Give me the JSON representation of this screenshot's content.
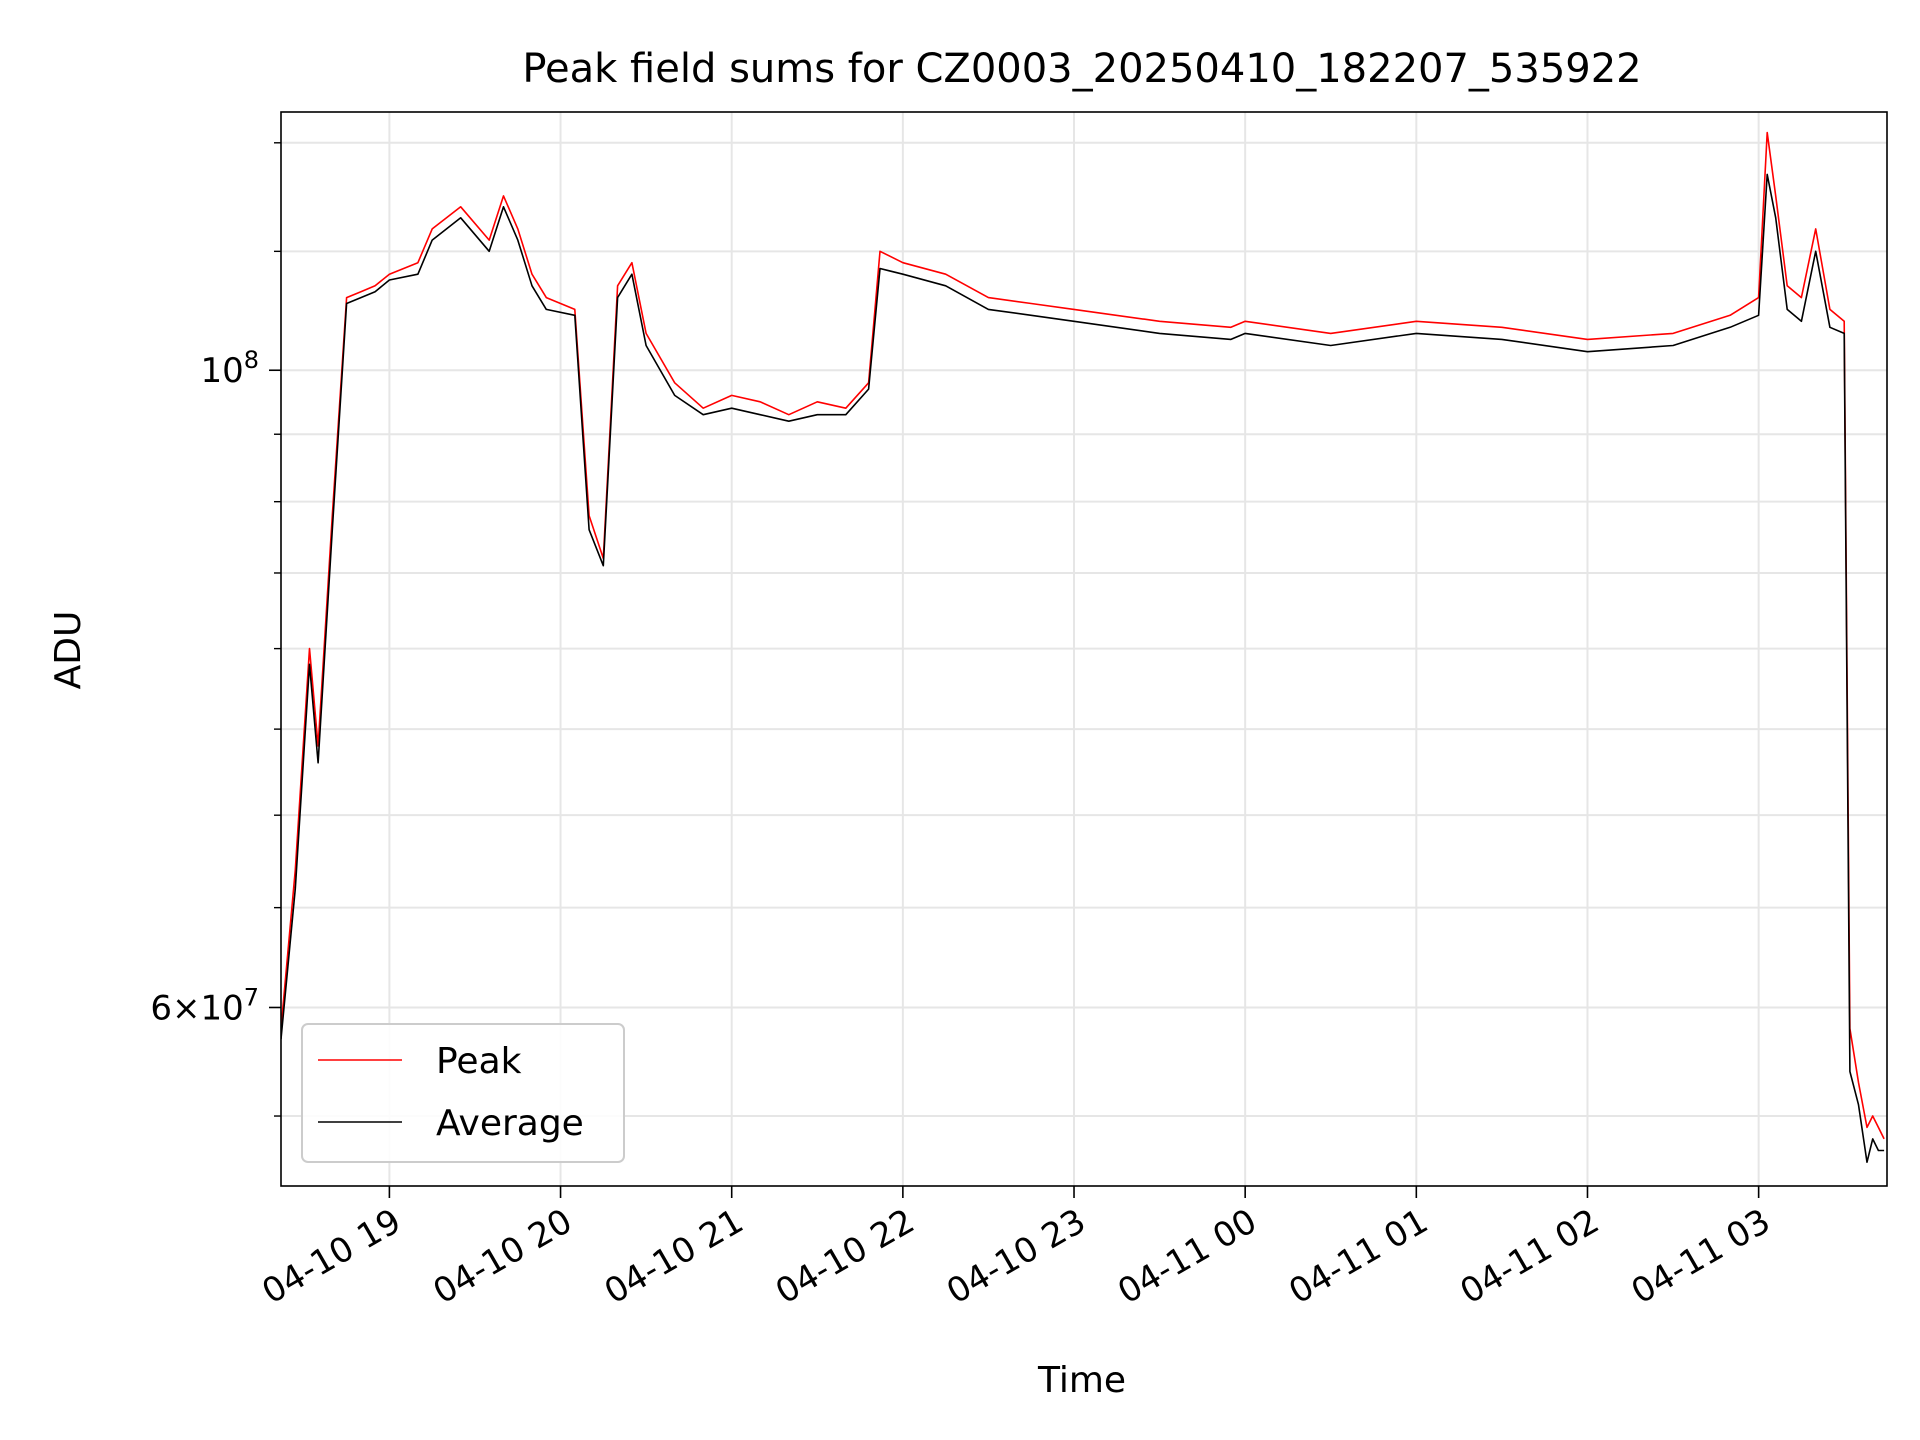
{
  "chart_data": {
    "type": "line",
    "title": "Peak field sums for CZ0003_20250410_182207_535922",
    "xlabel": "Time",
    "ylabel": "ADU",
    "yscale": "log",
    "grid": true,
    "legend_position": "lower-left",
    "xlim": [
      "2025-04-10 18:22",
      "2025-04-11 03:45"
    ],
    "ylim": [
      52000000,
      123000000
    ],
    "x_tick_labels": [
      "04-10 19",
      "04-10 20",
      "04-10 21",
      "04-10 22",
      "04-10 23",
      "04-11 00",
      "04-11 01",
      "04-11 02",
      "04-11 03"
    ],
    "x_ticks": [
      "2025-04-10 19:00",
      "2025-04-10 20:00",
      "2025-04-10 21:00",
      "2025-04-10 22:00",
      "2025-04-10 23:00",
      "2025-04-11 00:00",
      "2025-04-11 01:00",
      "2025-04-11 02:00",
      "2025-04-11 03:00"
    ],
    "y_major_ticks": [
      {
        "value": 100000000,
        "base": "10",
        "exp": "8",
        "mant": ""
      },
      {
        "value": 60000000,
        "base": "10",
        "exp": "7",
        "mant": "6"
      }
    ],
    "y_minor_ticks": [
      55000000,
      65000000,
      70000000,
      75000000,
      80000000,
      85000000,
      90000000,
      95000000,
      110000000,
      120000000
    ],
    "series": [
      {
        "name": "Peak",
        "color": "#ff0000",
        "x": [
          "2025-04-10 18:22",
          "2025-04-10 18:27",
          "2025-04-10 18:32",
          "2025-04-10 18:35",
          "2025-04-10 18:40",
          "2025-04-10 18:45",
          "2025-04-10 18:50",
          "2025-04-10 18:55",
          "2025-04-10 19:00",
          "2025-04-10 19:10",
          "2025-04-10 19:15",
          "2025-04-10 19:25",
          "2025-04-10 19:35",
          "2025-04-10 19:40",
          "2025-04-10 19:45",
          "2025-04-10 19:50",
          "2025-04-10 19:55",
          "2025-04-10 20:05",
          "2025-04-10 20:10",
          "2025-04-10 20:15",
          "2025-04-10 20:20",
          "2025-04-10 20:25",
          "2025-04-10 20:30",
          "2025-04-10 20:40",
          "2025-04-10 20:50",
          "2025-04-10 21:00",
          "2025-04-10 21:10",
          "2025-04-10 21:20",
          "2025-04-10 21:30",
          "2025-04-10 21:40",
          "2025-04-10 21:48",
          "2025-04-10 21:52",
          "2025-04-10 22:00",
          "2025-04-10 22:15",
          "2025-04-10 22:30",
          "2025-04-10 22:45",
          "2025-04-10 23:00",
          "2025-04-10 23:30",
          "2025-04-10 23:55",
          "2025-04-11 00:00",
          "2025-04-11 00:30",
          "2025-04-11 01:00",
          "2025-04-11 01:30",
          "2025-04-11 02:00",
          "2025-04-11 02:30",
          "2025-04-11 02:50",
          "2025-04-11 03:00",
          "2025-04-11 03:03",
          "2025-04-11 03:06",
          "2025-04-11 03:10",
          "2025-04-11 03:15",
          "2025-04-11 03:20",
          "2025-04-11 03:25",
          "2025-04-11 03:30",
          "2025-04-11 03:32",
          "2025-04-11 03:35",
          "2025-04-11 03:38",
          "2025-04-11 03:40",
          "2025-04-11 03:42",
          "2025-04-11 03:44"
        ],
        "values": [
          59000000,
          67000000,
          80000000,
          74000000,
          89000000,
          106000000,
          106500000,
          107000000,
          108000000,
          109000000,
          112000000,
          114000000,
          111000000,
          115000000,
          112000000,
          108000000,
          106000000,
          105000000,
          89000000,
          86000000,
          107000000,
          109000000,
          103000000,
          99000000,
          97000000,
          98000000,
          97500000,
          96500000,
          97500000,
          97000000,
          99000000,
          110000000,
          109000000,
          108000000,
          106000000,
          105500000,
          105000000,
          104000000,
          103500000,
          104000000,
          103000000,
          104000000,
          103500000,
          102500000,
          103000000,
          104500000,
          106000000,
          121000000,
          115000000,
          107000000,
          106000000,
          112000000,
          105000000,
          104000000,
          59000000,
          56500000,
          54500000,
          55000000,
          54500000,
          54000000
        ]
      },
      {
        "name": "Average",
        "color": "#000000",
        "x": [
          "2025-04-10 18:22",
          "2025-04-10 18:27",
          "2025-04-10 18:32",
          "2025-04-10 18:35",
          "2025-04-10 18:40",
          "2025-04-10 18:45",
          "2025-04-10 18:50",
          "2025-04-10 18:55",
          "2025-04-10 19:00",
          "2025-04-10 19:10",
          "2025-04-10 19:15",
          "2025-04-10 19:25",
          "2025-04-10 19:35",
          "2025-04-10 19:40",
          "2025-04-10 19:45",
          "2025-04-10 19:50",
          "2025-04-10 19:55",
          "2025-04-10 20:05",
          "2025-04-10 20:10",
          "2025-04-10 20:15",
          "2025-04-10 20:20",
          "2025-04-10 20:25",
          "2025-04-10 20:30",
          "2025-04-10 20:40",
          "2025-04-10 20:50",
          "2025-04-10 21:00",
          "2025-04-10 21:10",
          "2025-04-10 21:20",
          "2025-04-10 21:30",
          "2025-04-10 21:40",
          "2025-04-10 21:48",
          "2025-04-10 21:52",
          "2025-04-10 22:00",
          "2025-04-10 22:15",
          "2025-04-10 22:30",
          "2025-04-10 22:45",
          "2025-04-10 23:00",
          "2025-04-10 23:30",
          "2025-04-10 23:55",
          "2025-04-11 00:00",
          "2025-04-11 00:30",
          "2025-04-11 01:00",
          "2025-04-11 01:30",
          "2025-04-11 02:00",
          "2025-04-11 02:30",
          "2025-04-11 02:50",
          "2025-04-11 03:00",
          "2025-04-11 03:03",
          "2025-04-11 03:06",
          "2025-04-11 03:10",
          "2025-04-11 03:15",
          "2025-04-11 03:20",
          "2025-04-11 03:25",
          "2025-04-11 03:30",
          "2025-04-11 03:32",
          "2025-04-11 03:35",
          "2025-04-11 03:38",
          "2025-04-11 03:40",
          "2025-04-11 03:42",
          "2025-04-11 03:44"
        ],
        "values": [
          58500000,
          66000000,
          79000000,
          73000000,
          88000000,
          105500000,
          106000000,
          106500000,
          107500000,
          108000000,
          111000000,
          113000000,
          110000000,
          114000000,
          111000000,
          107000000,
          105000000,
          104500000,
          88000000,
          85500000,
          106000000,
          108000000,
          102000000,
          98000000,
          96500000,
          97000000,
          96500000,
          96000000,
          96500000,
          96500000,
          98500000,
          108500000,
          108000000,
          107000000,
          105000000,
          104500000,
          104000000,
          103000000,
          102500000,
          103000000,
          102000000,
          103000000,
          102500000,
          101500000,
          102000000,
          103500000,
          104500000,
          117000000,
          113000000,
          105000000,
          104000000,
          110000000,
          103500000,
          103000000,
          57000000,
          55500000,
          53000000,
          54000000,
          53500000,
          53500000
        ]
      }
    ]
  }
}
